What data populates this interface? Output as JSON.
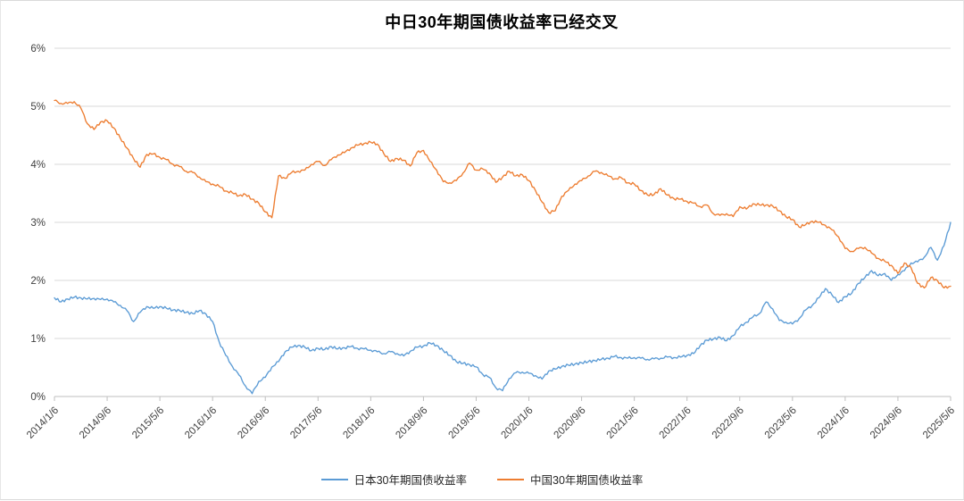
{
  "chart_data": {
    "type": "line",
    "title": "中日30年期国债收益率已经交叉",
    "xlabel": "",
    "ylabel": "",
    "y_range": [
      0,
      6
    ],
    "y_unit": "%",
    "y_tick_labels": [
      "0%",
      "1%",
      "2%",
      "3%",
      "4%",
      "5%",
      "6%"
    ],
    "x_tick_labels": [
      "2014/1/6",
      "2014/9/6",
      "2015/5/6",
      "2016/1/6",
      "2016/9/6",
      "2017/5/6",
      "2018/1/6",
      "2018/9/6",
      "2019/5/6",
      "2020/1/6",
      "2020/9/6",
      "2021/5/6",
      "2022/1/6",
      "2022/9/6",
      "2023/5/6",
      "2024/1/6",
      "2024/9/6",
      "2025/5/6"
    ],
    "grid": "horizontal",
    "legend_position": "bottom",
    "axis_color": "#bfbfbf",
    "grid_color": "#d9d9d9",
    "dates": [
      "2014/1",
      "2014/2",
      "2014/3",
      "2014/4",
      "2014/5",
      "2014/6",
      "2014/7",
      "2014/8",
      "2014/9",
      "2014/10",
      "2014/11",
      "2014/12",
      "2015/1",
      "2015/2",
      "2015/3",
      "2015/4",
      "2015/5",
      "2015/6",
      "2015/7",
      "2015/8",
      "2015/9",
      "2015/10",
      "2015/11",
      "2015/12",
      "2016/1",
      "2016/2",
      "2016/3",
      "2016/4",
      "2016/5",
      "2016/6",
      "2016/7",
      "2016/8",
      "2016/9",
      "2016/10",
      "2016/11",
      "2016/12",
      "2017/1",
      "2017/2",
      "2017/3",
      "2017/4",
      "2017/5",
      "2017/6",
      "2017/7",
      "2017/8",
      "2017/9",
      "2017/10",
      "2017/11",
      "2017/12",
      "2018/1",
      "2018/2",
      "2018/3",
      "2018/4",
      "2018/5",
      "2018/6",
      "2018/7",
      "2018/8",
      "2018/9",
      "2018/10",
      "2018/11",
      "2018/12",
      "2019/1",
      "2019/2",
      "2019/3",
      "2019/4",
      "2019/5",
      "2019/6",
      "2019/7",
      "2019/8",
      "2019/9",
      "2019/10",
      "2019/11",
      "2019/12",
      "2020/1",
      "2020/2",
      "2020/3",
      "2020/4",
      "2020/5",
      "2020/6",
      "2020/7",
      "2020/8",
      "2020/9",
      "2020/10",
      "2020/11",
      "2020/12",
      "2021/1",
      "2021/2",
      "2021/3",
      "2021/4",
      "2021/5",
      "2021/6",
      "2021/7",
      "2021/8",
      "2021/9",
      "2021/10",
      "2021/11",
      "2021/12",
      "2022/1",
      "2022/2",
      "2022/3",
      "2022/4",
      "2022/5",
      "2022/6",
      "2022/7",
      "2022/8",
      "2022/9",
      "2022/10",
      "2022/11",
      "2022/12",
      "2023/1",
      "2023/2",
      "2023/3",
      "2023/4",
      "2023/5",
      "2023/6",
      "2023/7",
      "2023/8",
      "2023/9",
      "2023/10",
      "2023/11",
      "2023/12",
      "2024/1",
      "2024/2",
      "2024/3",
      "2024/4",
      "2024/5",
      "2024/6",
      "2024/7",
      "2024/8",
      "2024/9",
      "2024/10",
      "2024/11",
      "2024/12",
      "2025/1",
      "2025/2",
      "2025/3",
      "2025/4",
      "2025/5"
    ],
    "series": [
      {
        "name": "日本30年期国债收益率",
        "color": "#5B9BD5",
        "values": [
          1.7,
          1.63,
          1.68,
          1.71,
          1.7,
          1.68,
          1.69,
          1.67,
          1.68,
          1.63,
          1.57,
          1.48,
          1.29,
          1.45,
          1.55,
          1.52,
          1.55,
          1.52,
          1.49,
          1.48,
          1.45,
          1.43,
          1.48,
          1.42,
          1.29,
          0.94,
          0.71,
          0.52,
          0.37,
          0.18,
          0.05,
          0.26,
          0.33,
          0.51,
          0.6,
          0.77,
          0.85,
          0.88,
          0.85,
          0.79,
          0.83,
          0.81,
          0.86,
          0.82,
          0.84,
          0.86,
          0.83,
          0.82,
          0.8,
          0.77,
          0.74,
          0.77,
          0.74,
          0.7,
          0.78,
          0.85,
          0.87,
          0.92,
          0.88,
          0.79,
          0.71,
          0.6,
          0.57,
          0.55,
          0.51,
          0.38,
          0.33,
          0.15,
          0.1,
          0.31,
          0.41,
          0.42,
          0.4,
          0.36,
          0.3,
          0.44,
          0.47,
          0.52,
          0.54,
          0.56,
          0.58,
          0.6,
          0.62,
          0.64,
          0.66,
          0.69,
          0.67,
          0.66,
          0.67,
          0.66,
          0.64,
          0.65,
          0.66,
          0.68,
          0.67,
          0.68,
          0.71,
          0.74,
          0.88,
          0.97,
          0.99,
          1.02,
          0.96,
          1.05,
          1.2,
          1.28,
          1.37,
          1.43,
          1.63,
          1.51,
          1.31,
          1.28,
          1.25,
          1.34,
          1.49,
          1.57,
          1.7,
          1.86,
          1.75,
          1.62,
          1.72,
          1.78,
          1.95,
          2.05,
          2.17,
          2.08,
          2.12,
          2.0,
          2.1,
          2.17,
          2.3,
          2.32,
          2.4,
          2.57,
          2.35,
          2.6,
          3.0
        ]
      },
      {
        "name": "中国30年期国债收益率",
        "color": "#ED7D31",
        "values": [
          5.1,
          5.05,
          5.05,
          5.08,
          4.97,
          4.7,
          4.6,
          4.73,
          4.75,
          4.63,
          4.45,
          4.28,
          4.1,
          3.95,
          4.17,
          4.18,
          4.12,
          4.08,
          4.0,
          3.96,
          3.88,
          3.86,
          3.78,
          3.7,
          3.66,
          3.62,
          3.54,
          3.51,
          3.46,
          3.48,
          3.4,
          3.33,
          3.18,
          3.08,
          3.8,
          3.76,
          3.86,
          3.88,
          3.9,
          4.0,
          4.05,
          3.98,
          4.08,
          4.16,
          4.2,
          4.28,
          4.33,
          4.36,
          4.38,
          4.35,
          4.18,
          4.05,
          4.1,
          4.07,
          3.97,
          4.2,
          4.24,
          4.05,
          3.9,
          3.7,
          3.68,
          3.72,
          3.85,
          4.02,
          3.9,
          3.92,
          3.85,
          3.69,
          3.78,
          3.88,
          3.8,
          3.82,
          3.72,
          3.55,
          3.35,
          3.17,
          3.2,
          3.45,
          3.55,
          3.66,
          3.72,
          3.8,
          3.88,
          3.86,
          3.8,
          3.75,
          3.77,
          3.68,
          3.66,
          3.55,
          3.47,
          3.48,
          3.58,
          3.47,
          3.41,
          3.4,
          3.36,
          3.33,
          3.27,
          3.3,
          3.15,
          3.12,
          3.15,
          3.1,
          3.27,
          3.23,
          3.32,
          3.3,
          3.3,
          3.28,
          3.2,
          3.1,
          3.05,
          2.92,
          2.96,
          3.02,
          3.0,
          2.95,
          2.87,
          2.75,
          2.55,
          2.5,
          2.55,
          2.57,
          2.47,
          2.38,
          2.33,
          2.26,
          2.12,
          2.3,
          2.22,
          1.95,
          1.87,
          2.05,
          2.0,
          1.87,
          1.9
        ]
      }
    ]
  }
}
